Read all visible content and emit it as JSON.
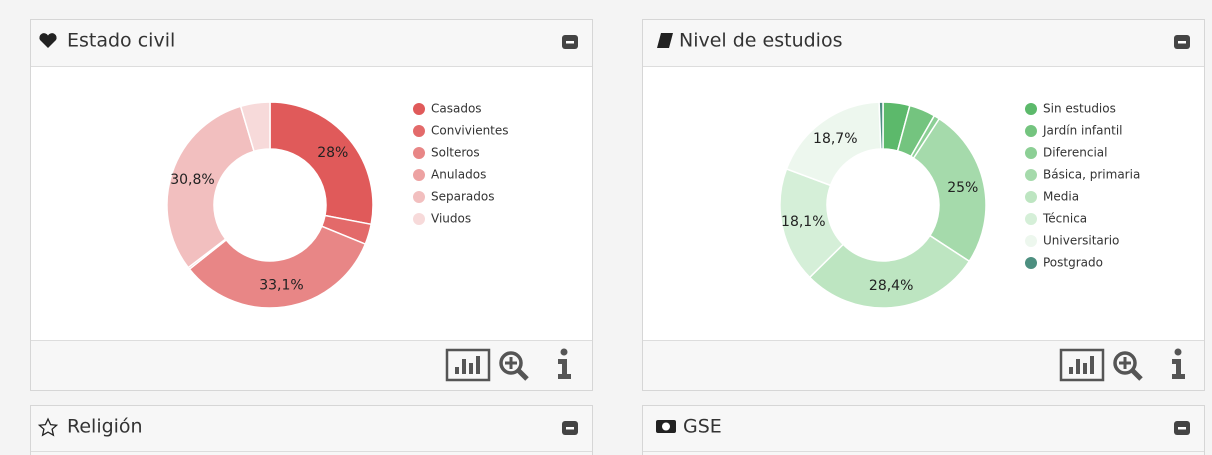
{
  "chart_data": [
    {
      "type": "pie",
      "title": "Estado civil",
      "donut": true,
      "categories": [
        "Casados",
        "Convivientes",
        "Solteros",
        "Anulados",
        "Separados",
        "Viudos"
      ],
      "values": [
        28,
        3.2,
        33.1,
        0.3,
        30.8,
        4.6
      ],
      "value_labels": [
        "28%",
        null,
        "33,1%",
        null,
        "30,8%",
        null
      ],
      "colors": [
        "#e05a5a",
        "#e36a6a",
        "#e88686",
        "#eda2a2",
        "#f2bfbf",
        "#f7dada"
      ]
    },
    {
      "type": "pie",
      "title": "Nivel de estudios",
      "donut": true,
      "categories": [
        "Sin estudios",
        "Jardín infantil",
        "Diferencial",
        "Básica, primaria",
        "Media",
        "Técnica",
        "Universitario",
        "Postgrado"
      ],
      "values": [
        4.2,
        4.1,
        0.9,
        25,
        28.4,
        18.1,
        18.7,
        0.6
      ],
      "value_labels": [
        null,
        null,
        null,
        "25%",
        "28,4%",
        "18,1%",
        "18,7%",
        null
      ],
      "colors": [
        "#5cb96b",
        "#74c47f",
        "#8ccf95",
        "#a5daab",
        "#bde5c1",
        "#d5efd8",
        "#edf7ee",
        "#4d8f80"
      ]
    }
  ],
  "panels": [
    {
      "title": "Religión"
    },
    {
      "title": "GSE"
    }
  ]
}
